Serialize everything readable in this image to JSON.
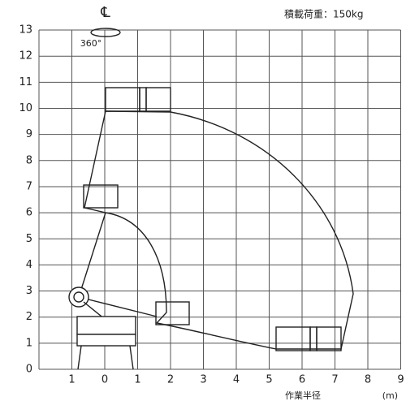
{
  "header": {
    "centerline": "℄",
    "rotation": "360°",
    "load": "積載荷重：150kg"
  },
  "y_axis": {
    "labels": [
      "0",
      "1",
      "2",
      "3",
      "4",
      "5",
      "6",
      "7",
      "8",
      "9",
      "10",
      "11",
      "12",
      "13"
    ]
  },
  "x_axis": {
    "labels": [
      "1",
      "0",
      "1",
      "2",
      "3",
      "4",
      "5",
      "6",
      "7",
      "8",
      "9"
    ],
    "title": "作業半径",
    "unit": "(m)"
  }
}
